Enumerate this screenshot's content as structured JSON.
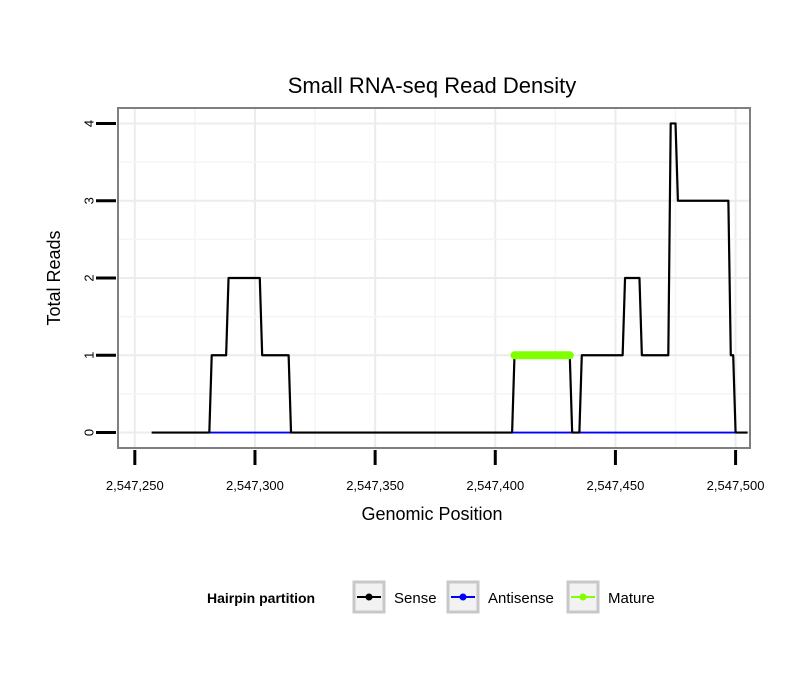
{
  "chart_data": {
    "type": "line",
    "title": "Small RNA-seq Read Density",
    "xlabel": "Genomic Position",
    "ylabel": "Total Reads",
    "xlim": [
      2547243,
      2547506
    ],
    "ylim": [
      -0.2,
      4.2
    ],
    "x_ticks": [
      2547250,
      2547300,
      2547350,
      2547400,
      2547450,
      2547500
    ],
    "x_tick_labels": [
      "2,547,250",
      "2,547,300",
      "2,547,350",
      "2,547,400",
      "2,547,450",
      "2,547,500"
    ],
    "y_ticks": [
      0,
      1,
      2,
      3,
      4
    ],
    "y_tick_labels": [
      "0",
      "1",
      "2",
      "3",
      "4"
    ],
    "grid": true,
    "legend": {
      "title": "Hairpin partition",
      "position": "bottom",
      "entries": [
        "Sense",
        "Antisense",
        "Mature"
      ]
    },
    "series": [
      {
        "name": "Sense",
        "color": "#000000",
        "x": [
          2547257,
          2547281,
          2547282,
          2547288,
          2547289,
          2547302,
          2547303,
          2547314,
          2547315,
          2547407,
          2547408,
          2547431,
          2547432,
          2547435,
          2547436,
          2547453,
          2547454,
          2547460,
          2547461,
          2547472,
          2547473,
          2547475,
          2547476,
          2547497,
          2547498,
          2547499,
          2547500,
          2547505
        ],
        "values": [
          0,
          0,
          1,
          1,
          2,
          2,
          1,
          1,
          0,
          0,
          1,
          1,
          0,
          0,
          1,
          1,
          2,
          2,
          1,
          1,
          4,
          4,
          3,
          3,
          1,
          1,
          0,
          0
        ]
      },
      {
        "name": "Antisense",
        "color": "#0000ff",
        "x": [
          2547281,
          2547314,
          2547408,
          2547504
        ],
        "values": [
          0,
          0,
          0,
          0
        ]
      },
      {
        "name": "Mature",
        "color": "#7fff00",
        "x": [
          2547408,
          2547431
        ],
        "values": [
          1,
          1
        ]
      }
    ]
  }
}
